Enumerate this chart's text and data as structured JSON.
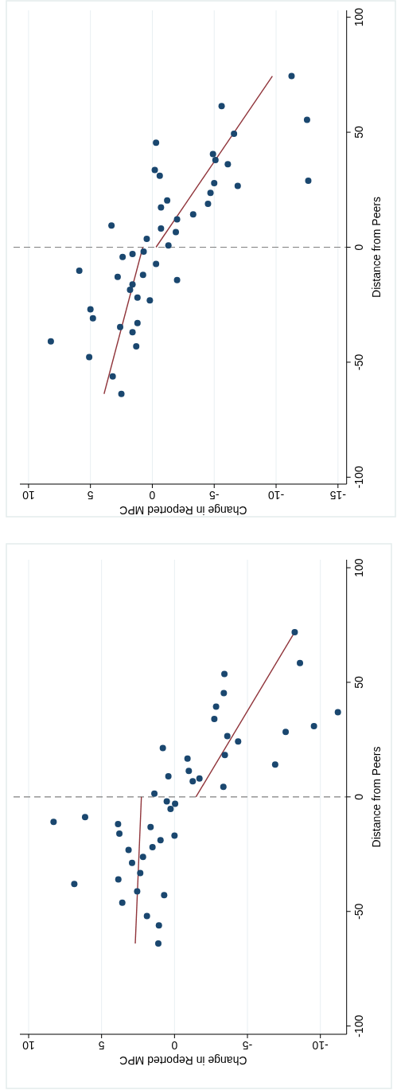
{
  "chart_data": [
    {
      "type": "scatter",
      "xlabel": "Change in Reported MPC",
      "ylabel": "Distance from Peers",
      "xlim": [
        10.7,
        -15.7
      ],
      "ylim": [
        -103,
        103
      ],
      "xticks": [
        10,
        5,
        0,
        -5,
        -10,
        -15
      ],
      "yticks": [
        -100,
        -50,
        0,
        50,
        100
      ],
      "grid": "x",
      "ref_lines": [
        {
          "axis": "y",
          "value": 0,
          "color": "#808080",
          "line_style": "dashed"
        }
      ],
      "series": [
        {
          "marker": "circle",
          "color": "#1a476f",
          "x": [
            -11.25,
            -5.6,
            -12.5,
            -6.6,
            -0.3,
            -4.9,
            -5.1,
            -6.1,
            -0.2,
            -0.6,
            -12.6,
            -5,
            -6.9,
            -4.7,
            -1.2,
            -4.5,
            -0.7,
            -3.3,
            -2,
            3.3,
            -0.7,
            -1.9,
            0.45,
            -1.3,
            0.7,
            1.6,
            2.4,
            -0.3,
            5.9,
            0.75,
            2.8,
            -2,
            1.6,
            1.8,
            1.2,
            0.2,
            5,
            4.8,
            1.2,
            2.6,
            1.6,
            8.2,
            1.3,
            5.1,
            3.2,
            2.5
          ],
          "values": [
            74.4,
            61.4,
            55.4,
            49.3,
            45.4,
            40.5,
            37.9,
            36.1,
            33.6,
            31.1,
            28.9,
            27.9,
            26.7,
            23.6,
            20.3,
            18.9,
            17.3,
            14.3,
            12.1,
            9.4,
            8.1,
            6.6,
            3.6,
            0.8,
            -1.9,
            -2.9,
            -4.2,
            -7.3,
            -10.2,
            -12,
            -12.9,
            -14.3,
            -16.2,
            -18.5,
            -21.9,
            -23.1,
            -27,
            -30.9,
            -33,
            -34.7,
            -37,
            -40.9,
            -43.1,
            -47.8,
            -56.2,
            -63.8
          ]
        },
        {
          "type": "line",
          "color": "#90353b",
          "x": [
            3.9,
            0.77
          ],
          "values": [
            -63.8,
            0
          ]
        },
        {
          "type": "line",
          "color": "#90353b",
          "x": [
            -0.3,
            -9.7
          ],
          "values": [
            0,
            74.4
          ]
        }
      ]
    },
    {
      "type": "scatter",
      "xlabel": "Change in Reported MPC",
      "ylabel": "Distance from Peers",
      "xlim": [
        10.6,
        -11.8
      ],
      "ylim": [
        -103.6,
        103.5
      ],
      "xticks": [
        10,
        5,
        0,
        -5,
        -10
      ],
      "yticks": [
        -100,
        -50,
        0,
        50,
        100
      ],
      "grid": "x",
      "ref_lines": [
        {
          "axis": "y",
          "value": 0,
          "color": "#808080",
          "line_style": "dashed"
        }
      ],
      "series": [
        {
          "marker": "circle",
          "color": "#1a476f",
          "x": [
            -8.24,
            -8.6,
            -3.42,
            -3.38,
            -11.2,
            -2.85,
            -2.73,
            -9.56,
            -7.62,
            -3.62,
            -4.36,
            0.8,
            -3.45,
            -0.89,
            -6.9,
            -0.98,
            0.42,
            -1.71,
            -1.25,
            -3.35,
            1.38,
            0.53,
            -0.04,
            0.27,
            6.13,
            8.29,
            3.87,
            1.64,
            3.78,
            0,
            0.96,
            1.51,
            3.15,
            2.16,
            2.91,
            2.35,
            3.85,
            6.87,
            2.56,
            0.71,
            3.58,
            1.89,
            1.07,
            1.11
          ],
          "values": [
            71.9,
            58.4,
            53.6,
            45.3,
            37,
            39.4,
            34,
            30.9,
            28.4,
            26.5,
            24.2,
            21.3,
            18.3,
            16.7,
            14.1,
            11.3,
            9,
            8,
            6.8,
            4.4,
            1.4,
            -2,
            -3,
            -5.3,
            -8.8,
            -10.9,
            -11.9,
            -13.2,
            -16,
            -16.9,
            -18.9,
            -21.9,
            -23.2,
            -26.2,
            -28.8,
            -33.2,
            -36,
            -38,
            -41.2,
            -42.9,
            -46.2,
            -52,
            -56.1,
            -64
          ]
        },
        {
          "type": "line",
          "color": "#90353b",
          "x": [
            2.69,
            2.27
          ],
          "values": [
            -64,
            0
          ]
        },
        {
          "type": "line",
          "color": "#90353b",
          "x": [
            -1.47,
            -8.24
          ],
          "values": [
            0,
            71.9
          ]
        }
      ]
    }
  ]
}
